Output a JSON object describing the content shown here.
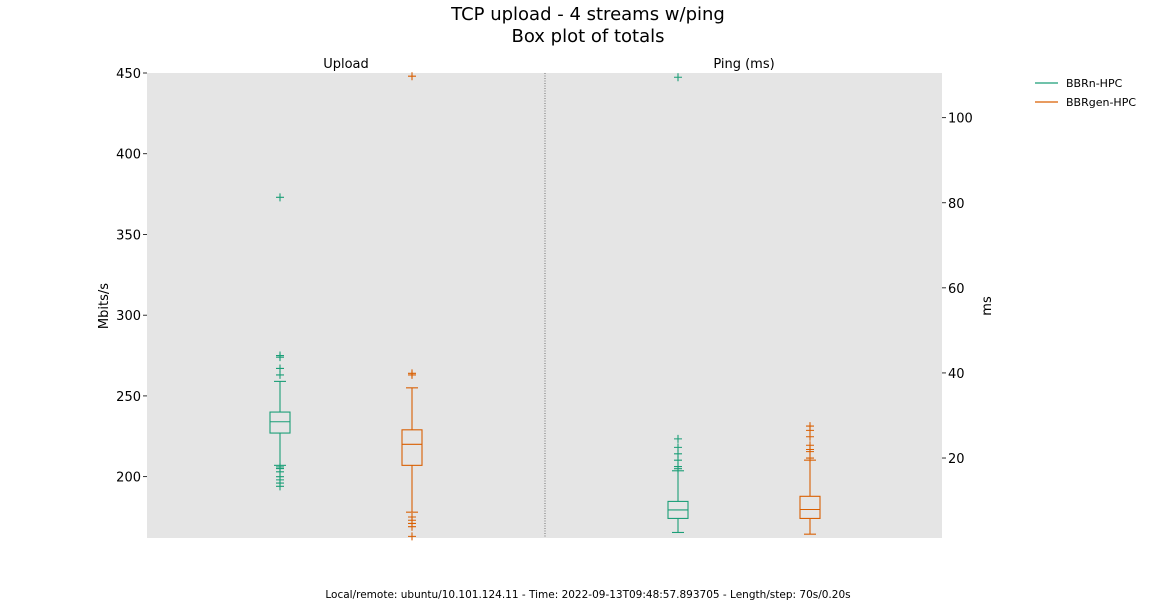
{
  "chart_data": {
    "type": "box",
    "title": "TCP upload - 4 streams w/ping",
    "subtitle": "Box plot of totals",
    "footer": "Local/remote: ubuntu/10.101.124.11 - Time: 2022-09-13T09:48:57.893705 - Length/step: 70s/0.20s",
    "legend_placement": "top-right, outside plot",
    "grid": false,
    "colors": {
      "BBRn-HPC": "#1b9e77",
      "BBRgen-HPC": "#d95f02",
      "plot_background": "#e5e5e5"
    },
    "legend": [
      {
        "label": "BBRn-HPC",
        "color": "#1b9e77"
      },
      {
        "label": "BBRgen-HPC",
        "color": "#d95f02"
      }
    ],
    "left_axis": {
      "label": "Mbits/s",
      "ylim": [
        162,
        450
      ],
      "ticks": [
        {
          "value": 200,
          "label": "200"
        },
        {
          "value": 250,
          "label": "250"
        },
        {
          "value": 300,
          "label": "300"
        },
        {
          "value": 350,
          "label": "350"
        },
        {
          "value": 400,
          "label": "400"
        },
        {
          "value": 450,
          "label": "450"
        }
      ]
    },
    "right_axis": {
      "label": "ms",
      "ylim": [
        1.2,
        110.5
      ],
      "ticks": [
        {
          "value": 20,
          "label": "20"
        },
        {
          "value": 40,
          "label": "40"
        },
        {
          "value": 60,
          "label": "60"
        },
        {
          "value": 80,
          "label": "80"
        },
        {
          "value": 100,
          "label": "100"
        }
      ]
    },
    "panels": [
      {
        "name": "Upload",
        "axis": "left",
        "boxes": [
          {
            "series": "BBRn-HPC",
            "q1": 227,
            "median": 234,
            "q3": 240,
            "whisker_low": 207,
            "whisker_high": 259,
            "outliers": [
              194,
              196,
              198,
              200,
              203,
              205,
              206,
              263,
              267,
              274,
              275,
              373
            ]
          },
          {
            "series": "BBRgen-HPC",
            "q1": 207,
            "median": 220,
            "q3": 229,
            "whisker_low": 178,
            "whisker_high": 255,
            "outliers": [
              163,
              169,
              171,
              173,
              175,
              263,
              264,
              448
            ]
          }
        ]
      },
      {
        "name": "Ping (ms)",
        "axis": "right",
        "boxes": [
          {
            "series": "BBRn-HPC",
            "q1": 5.8,
            "median": 7.8,
            "q3": 9.8,
            "whisker_low": 2.5,
            "whisker_high": 17,
            "outliers": [
              17.5,
              18,
              19.5,
              21,
              22.5,
              24.5,
              109.5
            ]
          },
          {
            "series": "BBRgen-HPC",
            "q1": 5.8,
            "median": 7.9,
            "q3": 11,
            "whisker_low": 2.1,
            "whisker_high": 19.5,
            "outliers": [
              20,
              21.5,
              22,
              23,
              25,
              26.5,
              27.5
            ]
          }
        ]
      }
    ]
  }
}
